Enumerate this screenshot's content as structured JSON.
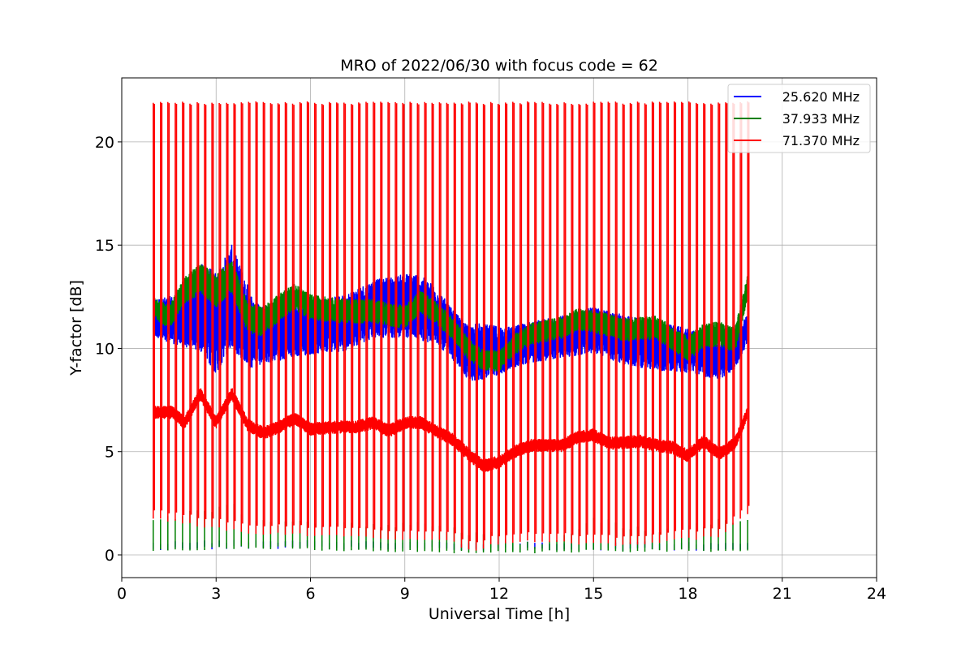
{
  "chart_data": {
    "type": "line",
    "title": "MRO of 2022/06/30 with focus code = 62",
    "xlabel": "Universal Time [h]",
    "ylabel": "Y-factor [dB]",
    "xlim": [
      0,
      24
    ],
    "ylim": [
      -1.1,
      23.1
    ],
    "xticks": [
      0,
      3,
      6,
      9,
      12,
      15,
      18,
      21,
      24
    ],
    "xtick_labels": [
      "0",
      "3",
      "6",
      "9",
      "12",
      "15",
      "18",
      "21",
      "24"
    ],
    "yticks": [
      0,
      5,
      10,
      15,
      20
    ],
    "ytick_labels": [
      "0",
      "5",
      "10",
      "15",
      "20"
    ],
    "grid": true,
    "legend_position": "top-right",
    "time_range": [
      1.0,
      19.9
    ],
    "series": [
      {
        "name": "25.620 MHz",
        "color": "#0000ff",
        "baseline": [
          [
            1.0,
            11.5
          ],
          [
            2.0,
            11.3
          ],
          [
            2.5,
            12.0
          ],
          [
            3.0,
            11.2
          ],
          [
            3.5,
            12.5
          ],
          [
            4.2,
            10.6
          ],
          [
            5.5,
            10.9
          ],
          [
            7.0,
            11.2
          ],
          [
            8.0,
            11.9
          ],
          [
            9.3,
            12.1
          ],
          [
            10.0,
            11.6
          ],
          [
            11.0,
            9.8
          ],
          [
            12.0,
            9.9
          ],
          [
            13.0,
            10.3
          ],
          [
            14.5,
            10.7
          ],
          [
            15.0,
            10.9
          ],
          [
            16.0,
            10.4
          ],
          [
            17.0,
            10.1
          ],
          [
            18.0,
            9.9
          ],
          [
            19.0,
            9.4
          ],
          [
            19.5,
            9.8
          ],
          [
            19.9,
            11.0
          ]
        ],
        "amplitude": [
          [
            1.0,
            0.9
          ],
          [
            2.0,
            1.3
          ],
          [
            2.7,
            2.4
          ],
          [
            3.5,
            2.5
          ],
          [
            4.5,
            1.4
          ],
          [
            6.0,
            1.3
          ],
          [
            8.0,
            1.4
          ],
          [
            9.4,
            1.6
          ],
          [
            10.5,
            1.2
          ],
          [
            11.3,
            1.4
          ],
          [
            12.5,
            1.0
          ],
          [
            14.0,
            1.0
          ],
          [
            16.0,
            1.2
          ],
          [
            18.0,
            1.1
          ],
          [
            19.0,
            0.9
          ],
          [
            19.9,
            0.7
          ]
        ],
        "dip_min": [
          [
            1.0,
            0.2
          ],
          [
            4.0,
            0.3
          ],
          [
            12.0,
            0.2
          ],
          [
            19.9,
            0.2
          ]
        ]
      },
      {
        "name": "37.933 MHz",
        "color": "#008000",
        "baseline": [
          [
            1.0,
            12.0
          ],
          [
            1.5,
            11.5
          ],
          [
            2.0,
            12.8
          ],
          [
            2.5,
            13.4
          ],
          [
            3.0,
            12.8
          ],
          [
            3.5,
            13.5
          ],
          [
            4.0,
            11.5
          ],
          [
            4.5,
            11.3
          ],
          [
            5.0,
            12.0
          ],
          [
            5.5,
            12.5
          ],
          [
            6.0,
            12.0
          ],
          [
            7.0,
            11.8
          ],
          [
            8.0,
            11.8
          ],
          [
            9.0,
            11.5
          ],
          [
            9.5,
            12.3
          ],
          [
            10.0,
            11.7
          ],
          [
            10.5,
            11.0
          ],
          [
            11.0,
            10.0
          ],
          [
            11.5,
            9.4
          ],
          [
            12.0,
            9.4
          ],
          [
            12.5,
            10.2
          ],
          [
            13.0,
            10.7
          ],
          [
            14.0,
            11.0
          ],
          [
            14.5,
            11.4
          ],
          [
            15.0,
            11.3
          ],
          [
            16.0,
            10.9
          ],
          [
            17.0,
            11.0
          ],
          [
            18.0,
            10.0
          ],
          [
            18.5,
            10.6
          ],
          [
            19.0,
            10.7
          ],
          [
            19.5,
            10.4
          ],
          [
            19.9,
            13.0
          ]
        ],
        "amplitude": [
          [
            1.0,
            0.5
          ],
          [
            3.0,
            0.8
          ],
          [
            6.0,
            0.6
          ],
          [
            12.0,
            0.5
          ],
          [
            19.9,
            0.6
          ]
        ],
        "dip_min": [
          [
            1.0,
            0.15
          ],
          [
            4.0,
            0.3
          ],
          [
            9.0,
            0.1
          ],
          [
            10.8,
            0.05
          ],
          [
            15.0,
            0.1
          ],
          [
            19.9,
            0.15
          ]
        ],
        "dip_top": [
          [
            1.0,
            1.6
          ],
          [
            2.5,
            2.1
          ],
          [
            3.5,
            2.5
          ],
          [
            4.0,
            1.6
          ],
          [
            6.0,
            1.5
          ],
          [
            9.0,
            1.5
          ],
          [
            12.0,
            0.9
          ],
          [
            13.5,
            0.4
          ],
          [
            15.0,
            1.7
          ],
          [
            17.0,
            1.1
          ],
          [
            19.9,
            1.8
          ]
        ]
      },
      {
        "name": "71.370 MHz",
        "color": "#ff0000",
        "baseline": [
          [
            1.0,
            6.9
          ],
          [
            1.6,
            6.9
          ],
          [
            2.0,
            6.4
          ],
          [
            2.5,
            7.8
          ],
          [
            3.0,
            6.4
          ],
          [
            3.5,
            7.8
          ],
          [
            4.0,
            6.3
          ],
          [
            4.5,
            5.9
          ],
          [
            5.0,
            6.2
          ],
          [
            5.5,
            6.6
          ],
          [
            6.0,
            6.1
          ],
          [
            7.0,
            6.2
          ],
          [
            7.5,
            6.2
          ],
          [
            8.0,
            6.4
          ],
          [
            8.5,
            6.0
          ],
          [
            9.0,
            6.4
          ],
          [
            9.5,
            6.4
          ],
          [
            10.0,
            6.0
          ],
          [
            10.5,
            5.6
          ],
          [
            11.0,
            4.9
          ],
          [
            11.5,
            4.3
          ],
          [
            12.0,
            4.5
          ],
          [
            12.5,
            5.0
          ],
          [
            13.0,
            5.3
          ],
          [
            14.0,
            5.3
          ],
          [
            14.5,
            5.7
          ],
          [
            15.0,
            5.8
          ],
          [
            15.5,
            5.4
          ],
          [
            16.5,
            5.5
          ],
          [
            17.0,
            5.3
          ],
          [
            17.5,
            5.2
          ],
          [
            18.0,
            4.8
          ],
          [
            18.5,
            5.5
          ],
          [
            19.0,
            4.9
          ],
          [
            19.5,
            5.4
          ],
          [
            19.9,
            6.9
          ]
        ],
        "amplitude": [
          [
            1.0,
            0.3
          ],
          [
            19.9,
            0.3
          ]
        ],
        "spike_top": [
          [
            1.0,
            21.9
          ],
          [
            19.9,
            21.9
          ]
        ],
        "dip_min": [
          [
            1.0,
            1.7
          ],
          [
            4.0,
            1.0
          ],
          [
            10.5,
            0.6
          ],
          [
            11.0,
            0.1
          ],
          [
            12.0,
            0.5
          ],
          [
            13.0,
            0.6
          ],
          [
            16.0,
            0.4
          ],
          [
            18.0,
            0.7
          ],
          [
            19.0,
            0.8
          ],
          [
            19.9,
            1.9
          ]
        ]
      }
    ]
  }
}
